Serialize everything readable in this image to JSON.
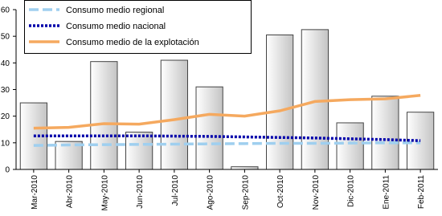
{
  "chart_data": {
    "type": "bar",
    "categories": [
      "Mar-2010",
      "Abr-2010",
      "May-2010",
      "Jun-2010",
      "Jul-2010",
      "Ago-2010",
      "Sep-2010",
      "Oct-2010",
      "Nov-2010",
      "Dic-2010",
      "Ene-2011",
      "Feb-2011"
    ],
    "values": [
      25,
      10.5,
      40.5,
      14,
      41,
      31,
      1,
      50.5,
      52.5,
      17.5,
      27.5,
      21.5
    ],
    "color": "#d8d8d8",
    "series": [
      {
        "name": "Consumo medio regional",
        "color": "#9fcfef",
        "style": "dashed",
        "values": [
          9,
          9.2,
          9.3,
          9.4,
          9.5,
          9.6,
          9.7,
          9.8,
          9.8,
          9.9,
          10,
          10
        ]
      },
      {
        "name": "Consumo medio nacional",
        "color": "#0000aa",
        "style": "dotted",
        "values": [
          12.6,
          12.6,
          12.6,
          12.6,
          12.5,
          12.4,
          12.2,
          12,
          11.8,
          11.5,
          11.2,
          10.8
        ]
      },
      {
        "name": "Consumo medio de la explotación",
        "color": "#f5a95f",
        "style": "solid",
        "values": [
          15.5,
          15.8,
          17.2,
          17,
          18.7,
          20.7,
          20,
          22,
          25.5,
          26.2,
          26.5,
          27.8
        ]
      }
    ],
    "ylim": [
      0,
      60
    ],
    "yticks": [
      0,
      10,
      20,
      30,
      40,
      50,
      60
    ],
    "grid": false,
    "legend": "upper-left"
  }
}
